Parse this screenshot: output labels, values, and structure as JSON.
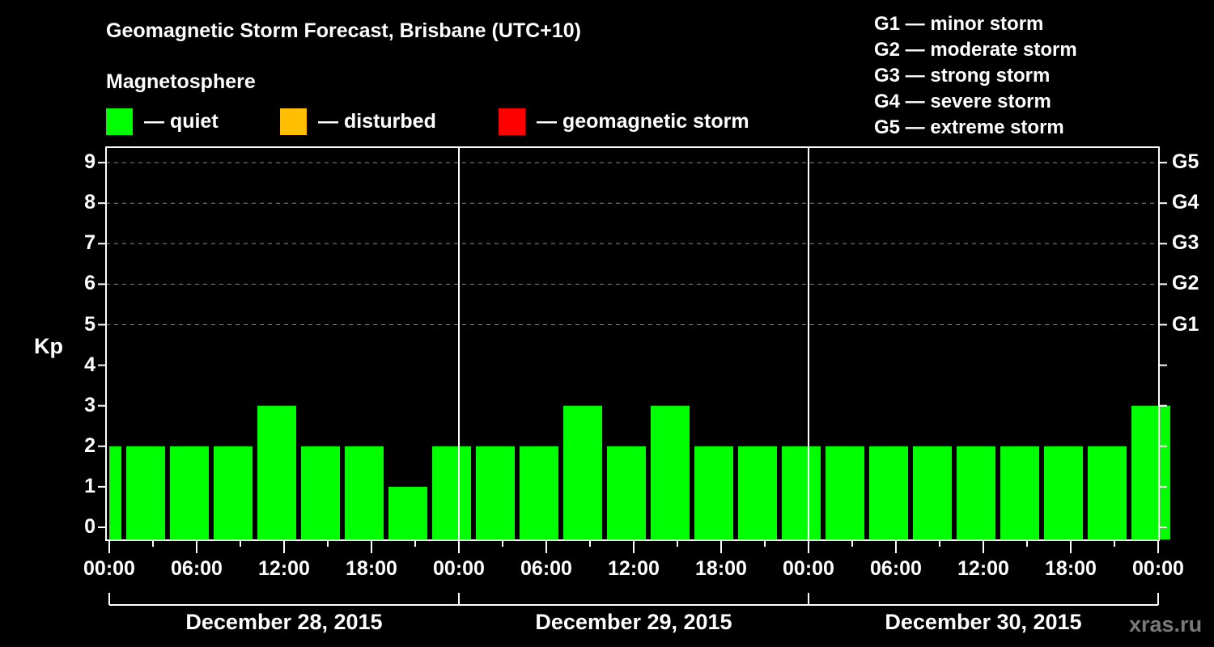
{
  "header": {
    "title": "Geomagnetic Storm Forecast, Brisbane (UTC+10)",
    "subtitle": "Magnetosphere"
  },
  "legend": [
    {
      "label": "— quiet",
      "color": "#00ff00"
    },
    {
      "label": "— disturbed",
      "color": "#ffbf00"
    },
    {
      "label": "— geomagnetic storm",
      "color": "#ff0000"
    }
  ],
  "g_scale": [
    "G1 — minor storm",
    "G2 — moderate storm",
    "G3 — strong storm",
    "G4 — severe storm",
    "G5 — extreme storm"
  ],
  "watermark": "xras.ru",
  "chart_data": {
    "type": "bar",
    "title": "Geomagnetic Storm Forecast, Brisbane (UTC+10)",
    "subtitle": "Magnetosphere",
    "ylabel": "Kp",
    "ylim": [
      0,
      9
    ],
    "yticks": [
      0,
      1,
      2,
      3,
      4,
      5,
      6,
      7,
      8,
      9
    ],
    "right_axis": {
      "labels": [
        "G1",
        "G2",
        "G3",
        "G4",
        "G5"
      ],
      "at_kp": [
        5,
        6,
        7,
        8,
        9
      ]
    },
    "xticks": [
      "00:00",
      "06:00",
      "12:00",
      "18:00",
      "00:00",
      "06:00",
      "12:00",
      "18:00",
      "00:00",
      "06:00",
      "12:00",
      "18:00",
      "00:00"
    ],
    "dates": [
      "December 28, 2015",
      "December 29, 2015",
      "December 30, 2015"
    ],
    "grid": "dashed horizontal at Kp 5-9",
    "interval_hours": 3,
    "leading_partial_value": 2,
    "categories": [
      "Dec 28 00-03",
      "Dec 28 03-06",
      "Dec 28 06-09",
      "Dec 28 09-12",
      "Dec 28 12-15",
      "Dec 28 15-18",
      "Dec 28 18-21",
      "Dec 28 21-24",
      "Dec 29 00-03",
      "Dec 29 03-06",
      "Dec 29 06-09",
      "Dec 29 09-12",
      "Dec 29 12-15",
      "Dec 29 15-18",
      "Dec 29 18-21",
      "Dec 29 21-24",
      "Dec 30 00-03",
      "Dec 30 03-06",
      "Dec 30 06-09",
      "Dec 30 09-12",
      "Dec 30 12-15",
      "Dec 30 15-18",
      "Dec 30 18-21",
      "Dec 30 21-24"
    ],
    "values": [
      2,
      2,
      2,
      3,
      2,
      2,
      1,
      2,
      2,
      2,
      3,
      2,
      3,
      2,
      2,
      2,
      2,
      2,
      2,
      2,
      2,
      2,
      2,
      3
    ],
    "status": "quiet",
    "bar_color": "#00ff00"
  }
}
